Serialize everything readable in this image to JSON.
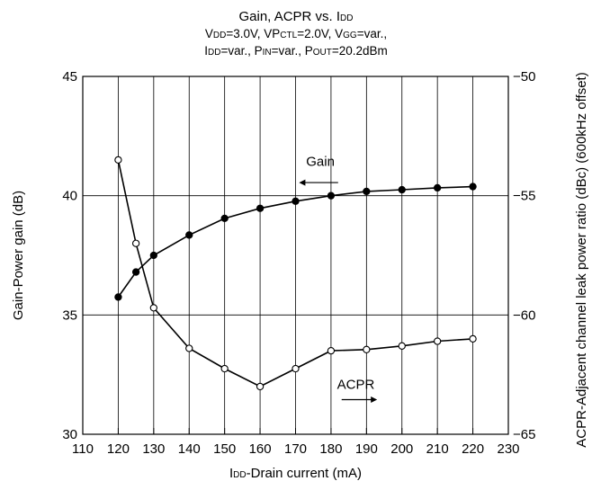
{
  "chart_data": {
    "type": "line",
    "title": "Gain, ACPR vs. IDD",
    "title_rich": [
      [
        "Gain, ACPR vs. I",
        false
      ],
      [
        "DD",
        true
      ]
    ],
    "subtitle_lines": [
      [
        [
          "V",
          false
        ],
        [
          "DD",
          true
        ],
        [
          "=3.0V, VP",
          false
        ],
        [
          "CTL",
          true
        ],
        [
          "=2.0V, V",
          false
        ],
        [
          "GG",
          true
        ],
        [
          "=var.,",
          false
        ]
      ],
      [
        [
          "I",
          false
        ],
        [
          "DD",
          true
        ],
        [
          "=var., P",
          false
        ],
        [
          "IN",
          true
        ],
        [
          "=var., P",
          false
        ],
        [
          "OUT",
          true
        ],
        [
          "=20.2dBm",
          false
        ]
      ]
    ],
    "xlabel": "IDD-Drain current (mA)",
    "xlabel_rich": [
      [
        "I",
        false
      ],
      [
        "DD",
        true
      ],
      [
        "-Drain current (mA)",
        false
      ]
    ],
    "ylabel_left": "Gain-Power gain (dB)",
    "ylabel_right": "ACPR-Adjacent channel leak power ratio (dBc) (600kHz offset)",
    "xlim": [
      110,
      230
    ],
    "ylim_left": [
      30,
      45
    ],
    "ylim_right": [
      -65,
      -50
    ],
    "xticks": [
      110,
      120,
      130,
      140,
      150,
      160,
      170,
      180,
      190,
      200,
      210,
      220,
      230
    ],
    "yticks_left": [
      30,
      35,
      40,
      45
    ],
    "yticks_right": [
      -65,
      -60,
      -55,
      -50
    ],
    "tick_labels_right": [
      "−65",
      "−60",
      "−55",
      "−50"
    ],
    "grid": true,
    "series": [
      {
        "name": "Gain",
        "axis": "left",
        "marker": "filled-circle",
        "x": [
          120,
          125,
          130,
          140,
          150,
          160,
          170,
          180,
          190,
          200,
          210,
          220
        ],
        "y": [
          35.75,
          36.8,
          37.5,
          38.35,
          39.05,
          39.47,
          39.77,
          40.0,
          40.18,
          40.25,
          40.33,
          40.38
        ]
      },
      {
        "name": "ACPR",
        "axis": "right",
        "marker": "open-circle",
        "x": [
          120,
          125,
          130,
          140,
          150,
          160,
          170,
          180,
          190,
          200,
          210,
          220
        ],
        "y": [
          -53.5,
          -57.0,
          -59.7,
          -61.4,
          -62.25,
          -63.0,
          -62.25,
          -61.5,
          -61.45,
          -61.3,
          -61.1,
          -61.0
        ]
      }
    ],
    "annotations": [
      {
        "text": "Gain",
        "series": "Gain",
        "arrow": "left"
      },
      {
        "text": "ACPR",
        "series": "ACPR",
        "arrow": "right"
      }
    ]
  }
}
